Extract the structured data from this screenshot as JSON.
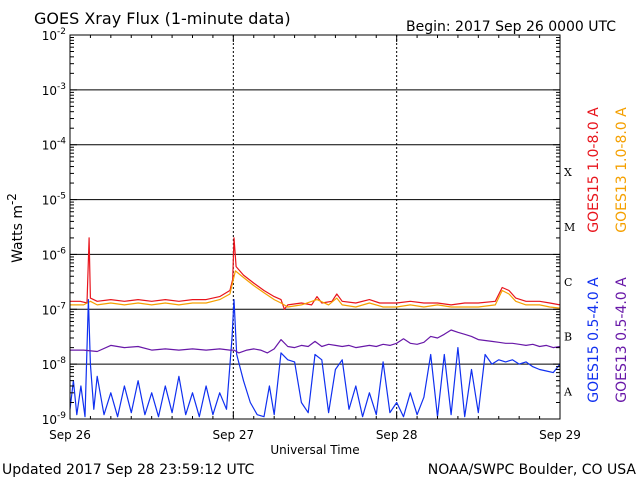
{
  "chart_data": {
    "type": "line",
    "title": "GOES Xray Flux (1-minute data)",
    "begin_label": "Begin:  2017 Sep 26 0000 UTC",
    "xlabel": "Universal Time",
    "ylabel": "Watts m",
    "ylabel_exp": "-2",
    "yscale": "log",
    "ylim": [
      1e-09,
      0.01
    ],
    "xlim_hours": [
      0,
      72
    ],
    "x_ticks": [
      {
        "hour": 0,
        "label": "Sep 26"
      },
      {
        "hour": 24,
        "label": "Sep 27"
      },
      {
        "hour": 48,
        "label": "Sep 28"
      },
      {
        "hour": 72,
        "label": "Sep 29"
      }
    ],
    "y_ticks": [
      {
        "exp": -9,
        "base": "10",
        "sup": "-9"
      },
      {
        "exp": -8,
        "base": "10",
        "sup": "-8"
      },
      {
        "exp": -7,
        "base": "10",
        "sup": "-7"
      },
      {
        "exp": -6,
        "base": "10",
        "sup": "-6"
      },
      {
        "exp": -5,
        "base": "10",
        "sup": "-5"
      },
      {
        "exp": -4,
        "base": "10",
        "sup": "-4"
      },
      {
        "exp": -3,
        "base": "10",
        "sup": "-3"
      },
      {
        "exp": -2,
        "base": "10",
        "sup": "-2"
      }
    ],
    "flare_classes": [
      {
        "label": "X",
        "exp": -4
      },
      {
        "label": "M",
        "exp": -5
      },
      {
        "label": "C",
        "exp": -6
      },
      {
        "label": "B",
        "exp": -7
      },
      {
        "label": "A",
        "exp": -8
      }
    ],
    "grid": true,
    "legend_position": "right-vertical",
    "series": [
      {
        "name": "GOES15 1.0-8.0 A",
        "color": "#e8141c",
        "points": [
          [
            0,
            1.4e-07
          ],
          [
            1.5,
            1.4e-07
          ],
          [
            2.5,
            1.3e-07
          ],
          [
            2.8,
            2e-06
          ],
          [
            3.0,
            1.6e-07
          ],
          [
            4,
            1.4e-07
          ],
          [
            6,
            1.5e-07
          ],
          [
            8,
            1.4e-07
          ],
          [
            10,
            1.5e-07
          ],
          [
            12,
            1.4e-07
          ],
          [
            14,
            1.5e-07
          ],
          [
            16,
            1.4e-07
          ],
          [
            18,
            1.5e-07
          ],
          [
            20,
            1.5e-07
          ],
          [
            22,
            1.7e-07
          ],
          [
            23.5,
            2.2e-07
          ],
          [
            23.9,
            3.5e-07
          ],
          [
            24.1,
            2e-06
          ],
          [
            24.4,
            6e-07
          ],
          [
            25.5,
            4.2e-07
          ],
          [
            27,
            3e-07
          ],
          [
            28.5,
            2.2e-07
          ],
          [
            30,
            1.7e-07
          ],
          [
            31,
            1.5e-07
          ],
          [
            31.5,
            1e-07
          ],
          [
            32,
            1.2e-07
          ],
          [
            34,
            1.3e-07
          ],
          [
            35.5,
            1.2e-07
          ],
          [
            36.3,
            1.7e-07
          ],
          [
            37,
            1.3e-07
          ],
          [
            38.5,
            1.4e-07
          ],
          [
            39.2,
            1.9e-07
          ],
          [
            40,
            1.4e-07
          ],
          [
            42,
            1.3e-07
          ],
          [
            44,
            1.5e-07
          ],
          [
            45.5,
            1.3e-07
          ],
          [
            48,
            1.3e-07
          ],
          [
            50,
            1.4e-07
          ],
          [
            52,
            1.3e-07
          ],
          [
            54,
            1.3e-07
          ],
          [
            56,
            1.2e-07
          ],
          [
            58,
            1.3e-07
          ],
          [
            60,
            1.3e-07
          ],
          [
            62.5,
            1.4e-07
          ],
          [
            63.5,
            2.5e-07
          ],
          [
            64.5,
            2.2e-07
          ],
          [
            65.5,
            1.6e-07
          ],
          [
            67,
            1.4e-07
          ],
          [
            69,
            1.4e-07
          ],
          [
            70.5,
            1.3e-07
          ],
          [
            72,
            1.2e-07
          ]
        ]
      },
      {
        "name": "GOES13 1.0-8.0 A",
        "color": "#f5a000",
        "points": [
          [
            0,
            1.2e-07
          ],
          [
            2,
            1.2e-07
          ],
          [
            3.0,
            1.4e-07
          ],
          [
            4,
            1.2e-07
          ],
          [
            6,
            1.3e-07
          ],
          [
            8,
            1.2e-07
          ],
          [
            10,
            1.3e-07
          ],
          [
            12,
            1.2e-07
          ],
          [
            14,
            1.3e-07
          ],
          [
            16,
            1.2e-07
          ],
          [
            18,
            1.3e-07
          ],
          [
            20,
            1.3e-07
          ],
          [
            22,
            1.5e-07
          ],
          [
            23.5,
            1.9e-07
          ],
          [
            24.3,
            5e-07
          ],
          [
            25.5,
            3.8e-07
          ],
          [
            27,
            2.7e-07
          ],
          [
            28.5,
            2e-07
          ],
          [
            30,
            1.5e-07
          ],
          [
            31,
            1.3e-07
          ],
          [
            32,
            1.1e-07
          ],
          [
            34,
            1.2e-07
          ],
          [
            36.3,
            1.5e-07
          ],
          [
            38,
            1.2e-07
          ],
          [
            39.2,
            1.6e-07
          ],
          [
            40,
            1.2e-07
          ],
          [
            42,
            1.1e-07
          ],
          [
            44,
            1.3e-07
          ],
          [
            46,
            1.1e-07
          ],
          [
            48,
            1.1e-07
          ],
          [
            50,
            1.2e-07
          ],
          [
            52,
            1.1e-07
          ],
          [
            54,
            1.2e-07
          ],
          [
            56,
            1.1e-07
          ],
          [
            58,
            1.1e-07
          ],
          [
            60,
            1.1e-07
          ],
          [
            62.5,
            1.2e-07
          ],
          [
            63.5,
            2.2e-07
          ],
          [
            64.5,
            1.9e-07
          ],
          [
            65.5,
            1.4e-07
          ],
          [
            67,
            1.2e-07
          ],
          [
            69,
            1.2e-07
          ],
          [
            70.5,
            1.1e-07
          ],
          [
            72,
            1.05e-07
          ]
        ]
      },
      {
        "name": "GOES15 0.5-4.0 A",
        "color": "#1030f0",
        "points": [
          [
            0,
            1.5e-09
          ],
          [
            0.5,
            5e-09
          ],
          [
            1,
            1.2e-09
          ],
          [
            1.6,
            4e-09
          ],
          [
            2.2,
            1.1e-09
          ],
          [
            2.7,
            1.5e-07
          ],
          [
            3,
            1e-08
          ],
          [
            3.5,
            1.5e-09
          ],
          [
            4,
            6e-09
          ],
          [
            5,
            1.2e-09
          ],
          [
            6,
            3e-09
          ],
          [
            7,
            1.1e-09
          ],
          [
            8,
            4e-09
          ],
          [
            9,
            1.3e-09
          ],
          [
            10,
            5e-09
          ],
          [
            11,
            1.2e-09
          ],
          [
            12,
            3e-09
          ],
          [
            13,
            1.1e-09
          ],
          [
            14,
            4e-09
          ],
          [
            15,
            1.3e-09
          ],
          [
            16,
            6e-09
          ],
          [
            17,
            1.2e-09
          ],
          [
            18,
            3e-09
          ],
          [
            19,
            1.1e-09
          ],
          [
            20,
            4e-09
          ],
          [
            21,
            1.2e-09
          ],
          [
            22,
            3e-09
          ],
          [
            23,
            1.5e-09
          ],
          [
            23.8,
            3e-08
          ],
          [
            24.1,
            1.5e-07
          ],
          [
            24.5,
            1.5e-08
          ],
          [
            25.5,
            5e-09
          ],
          [
            26.5,
            2e-09
          ],
          [
            27.5,
            1.2e-09
          ],
          [
            28.5,
            1.1e-09
          ],
          [
            29.3,
            4e-09
          ],
          [
            30,
            1.2e-09
          ],
          [
            31,
            1.6e-08
          ],
          [
            32,
            1.2e-08
          ],
          [
            33,
            1.1e-08
          ],
          [
            34,
            2e-09
          ],
          [
            35,
            1.3e-09
          ],
          [
            36,
            1.5e-08
          ],
          [
            37,
            1.2e-08
          ],
          [
            38,
            1.3e-09
          ],
          [
            39,
            8e-09
          ],
          [
            40,
            1.2e-08
          ],
          [
            41,
            1.5e-09
          ],
          [
            42,
            4e-09
          ],
          [
            43,
            1.1e-09
          ],
          [
            44,
            3e-09
          ],
          [
            45,
            1.2e-09
          ],
          [
            46,
            1.1e-08
          ],
          [
            47,
            1.3e-09
          ],
          [
            48,
            2e-09
          ],
          [
            49,
            1.1e-09
          ],
          [
            50,
            3e-09
          ],
          [
            51,
            1.2e-09
          ],
          [
            52,
            2.5e-09
          ],
          [
            53,
            1.5e-08
          ],
          [
            54,
            1.1e-09
          ],
          [
            55,
            1.5e-08
          ],
          [
            56,
            1.2e-09
          ],
          [
            57,
            2e-08
          ],
          [
            58,
            1.1e-09
          ],
          [
            59,
            8e-09
          ],
          [
            60,
            1.3e-09
          ],
          [
            61,
            1.5e-08
          ],
          [
            62,
            1e-08
          ],
          [
            63,
            1.2e-08
          ],
          [
            64,
            1.1e-08
          ],
          [
            65,
            1.2e-08
          ],
          [
            66,
            1e-08
          ],
          [
            67,
            1.1e-08
          ],
          [
            68,
            9e-09
          ],
          [
            69,
            8e-09
          ],
          [
            70,
            7.5e-09
          ],
          [
            71,
            7e-09
          ],
          [
            72,
            1e-08
          ]
        ]
      },
      {
        "name": "GOES13 0.5-4.0 A",
        "color": "#6818a8",
        "points": [
          [
            0,
            1.8e-08
          ],
          [
            2,
            1.8e-08
          ],
          [
            4,
            1.7e-08
          ],
          [
            6,
            2.2e-08
          ],
          [
            8,
            2e-08
          ],
          [
            10,
            2.1e-08
          ],
          [
            12,
            1.8e-08
          ],
          [
            14,
            1.9e-08
          ],
          [
            16,
            1.8e-08
          ],
          [
            18,
            1.9e-08
          ],
          [
            20,
            1.8e-08
          ],
          [
            22,
            1.9e-08
          ],
          [
            23.5,
            1.8e-08
          ],
          [
            24.1,
            1.8e-08
          ],
          [
            24.8,
            1.6e-08
          ],
          [
            26,
            1.8e-08
          ],
          [
            27,
            1.9e-08
          ],
          [
            28,
            1.8e-08
          ],
          [
            29,
            1.6e-08
          ],
          [
            30,
            1.9e-08
          ],
          [
            31,
            2.8e-08
          ],
          [
            32,
            2.1e-08
          ],
          [
            33,
            2e-08
          ],
          [
            34,
            2.2e-08
          ],
          [
            35,
            2.1e-08
          ],
          [
            36,
            2.6e-08
          ],
          [
            37,
            2.1e-08
          ],
          [
            38,
            2.3e-08
          ],
          [
            39,
            2.2e-08
          ],
          [
            40,
            2.1e-08
          ],
          [
            41,
            2.2e-08
          ],
          [
            42,
            2e-08
          ],
          [
            43,
            2.1e-08
          ],
          [
            44,
            2.2e-08
          ],
          [
            45,
            2.1e-08
          ],
          [
            46,
            2.3e-08
          ],
          [
            47,
            2.2e-08
          ],
          [
            48,
            2.4e-08
          ],
          [
            49,
            2.9e-08
          ],
          [
            50,
            2.4e-08
          ],
          [
            51,
            2.3e-08
          ],
          [
            52,
            2.5e-08
          ],
          [
            53,
            3.2e-08
          ],
          [
            54,
            3e-08
          ],
          [
            55,
            3.5e-08
          ],
          [
            56,
            4.2e-08
          ],
          [
            57,
            3.8e-08
          ],
          [
            58,
            3.5e-08
          ],
          [
            59,
            3.2e-08
          ],
          [
            60,
            2.8e-08
          ],
          [
            61,
            2.7e-08
          ],
          [
            62,
            2.6e-08
          ],
          [
            63,
            2.5e-08
          ],
          [
            64,
            2.4e-08
          ],
          [
            65,
            2.4e-08
          ],
          [
            66,
            2.3e-08
          ],
          [
            67,
            2.2e-08
          ],
          [
            68,
            2.3e-08
          ],
          [
            69,
            2.1e-08
          ],
          [
            70,
            2.2e-08
          ],
          [
            71,
            2e-08
          ],
          [
            72,
            2.1e-08
          ]
        ]
      }
    ]
  },
  "footer": {
    "updated": "Updated 2017 Sep 28 23:59:12 UTC",
    "credit": "NOAA/SWPC Boulder, CO USA"
  }
}
